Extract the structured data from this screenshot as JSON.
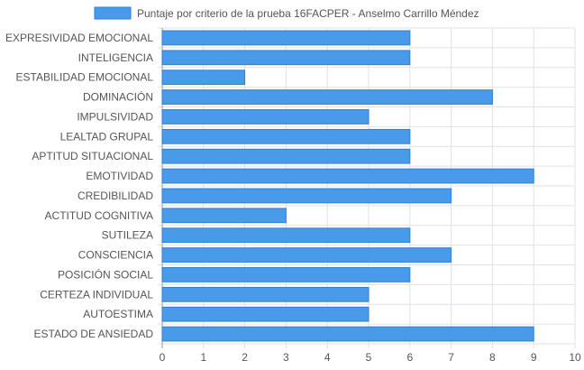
{
  "chart_data": {
    "type": "bar",
    "orientation": "horizontal",
    "categories": [
      "EXPRESIVIDAD EMOCIONAL",
      "INTELIGENCIA",
      "ESTABILIDAD EMOCIONAL",
      "DOMINACIÓN",
      "IMPULSIVIDAD",
      "LEALTAD GRUPAL",
      "APTITUD SITUACIONAL",
      "EMOTIVIDAD",
      "CREDIBILIDAD",
      "ACTITUD COGNITIVA",
      "SUTILEZA",
      "CONSCIENCIA",
      "POSICIÓN SOCIAL",
      "CERTEZA INDIVIDUAL",
      "AUTOESTIMA",
      "ESTADO DE ANSIEDAD"
    ],
    "series": [
      {
        "name": "Puntaje por criterio de la prueba 16FACPER - Anselmo Carrillo Méndez",
        "color": "#4a9aea",
        "border_color": "#2f7fd6",
        "values": [
          6,
          6,
          2,
          8,
          5,
          6,
          6,
          9,
          7,
          3,
          6,
          7,
          6,
          5,
          5,
          9
        ]
      }
    ],
    "xlim": [
      0,
      10
    ],
    "x_ticks": [
      "0",
      "1",
      "2",
      "3",
      "4",
      "5",
      "6",
      "7",
      "8",
      "9",
      "10"
    ],
    "grid": true,
    "legend_position": "top"
  }
}
